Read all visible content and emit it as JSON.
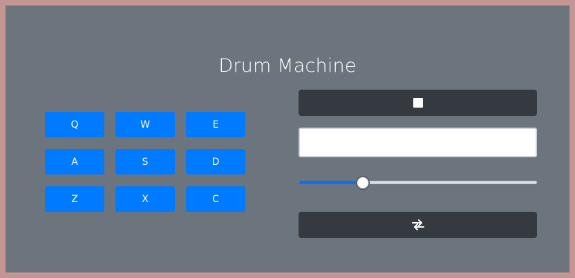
{
  "app": {
    "title": "Drum Machine"
  },
  "pads": [
    {
      "key": "Q"
    },
    {
      "key": "W"
    },
    {
      "key": "E"
    },
    {
      "key": "A"
    },
    {
      "key": "S"
    },
    {
      "key": "D"
    },
    {
      "key": "Z"
    },
    {
      "key": "X"
    },
    {
      "key": "C"
    }
  ],
  "controls": {
    "power_icon": "stop-icon",
    "display_text": "",
    "volume": 0.27,
    "bank_icon": "swap-arrows-icon"
  },
  "colors": {
    "background": "#6c757d",
    "frame": "#c49593",
    "pad": "#007bff",
    "dark_button": "#343a40",
    "slider_fill": "#0d6efd"
  }
}
